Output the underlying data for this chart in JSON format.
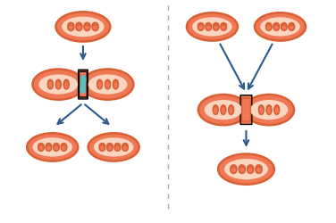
{
  "bg_color": "#ffffff",
  "outer_color": "#f07855",
  "outer_edge": "#d95f35",
  "inner_color": "#fad5c0",
  "cristae_color": "#f07855",
  "cristae_edge": "#d95f35",
  "arrow_color": "#2a5a8a",
  "divider_color": "#aaaaaa",
  "bead_color": "#5abfbf",
  "fig_width": 3.76,
  "fig_height": 2.5
}
